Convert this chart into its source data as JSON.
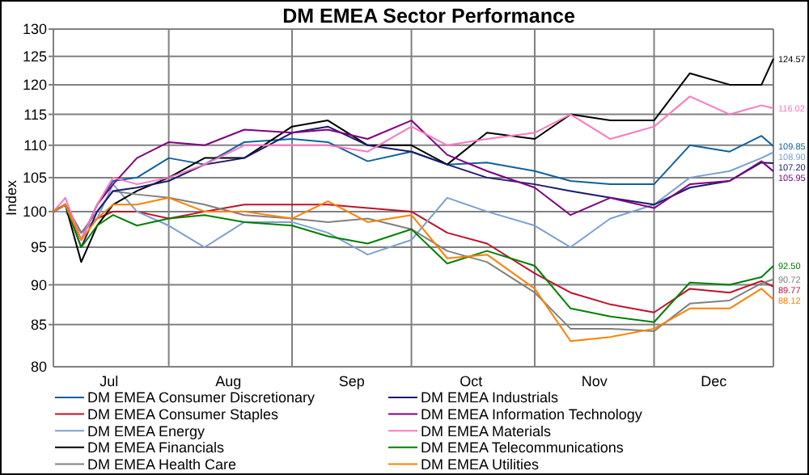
{
  "chart_data": {
    "type": "line",
    "title": "DM EMEA Sector Performance",
    "ylabel": "Index",
    "x": [
      "--07-03",
      "--07-06",
      "--07-10",
      "--07-14",
      "--07-18",
      "--07-24",
      "--08-01",
      "--08-10",
      "--08-20",
      "--09-01",
      "--09-10",
      "--09-20",
      "--10-01",
      "--10-10",
      "--10-20",
      "--11-01",
      "--11-10",
      "--11-20",
      "--12-01",
      "--12-10",
      "--12-20",
      "--12-28",
      "--12-31"
    ],
    "series": [
      {
        "name": "DM EMEA Consumer Discretionary",
        "color": "#1060a0",
        "values": [
          100,
          101,
          96,
          101,
          104.5,
          105,
          108,
          107,
          110.5,
          111,
          110.5,
          107.5,
          109,
          107,
          107.3,
          106,
          104.5,
          104,
          104,
          110,
          109,
          111.5,
          109.85
        ],
        "value_labels": [
          null,
          null,
          null,
          null,
          null,
          null,
          null,
          null,
          null,
          null,
          null,
          null,
          null,
          null,
          null,
          null,
          null,
          null,
          null,
          null,
          null,
          null,
          "109.85"
        ]
      },
      {
        "name": "DM EMEA Consumer Staples",
        "color": "#c0102a",
        "values": [
          100,
          101,
          97,
          99,
          100,
          100,
          99,
          100,
          101,
          101,
          101,
          100.5,
          100,
          97,
          95.5,
          91.5,
          89,
          87.5,
          86.5,
          89.5,
          89,
          90.5,
          89.77
        ],
        "value_labels": [
          null,
          null,
          null,
          null,
          null,
          null,
          null,
          null,
          null,
          null,
          null,
          null,
          null,
          null,
          null,
          null,
          null,
          null,
          null,
          null,
          null,
          null,
          "89.77"
        ]
      },
      {
        "name": "DM EMEA Energy",
        "color": "#7ba0d0",
        "values": [
          100,
          100,
          97,
          99,
          104,
          100,
          98,
          95,
          98.5,
          98.5,
          97,
          94,
          96,
          102,
          100,
          98,
          95,
          99,
          101,
          105,
          106,
          108,
          108.9
        ],
        "value_labels": [
          null,
          null,
          null,
          null,
          null,
          null,
          null,
          null,
          null,
          null,
          null,
          null,
          null,
          null,
          null,
          null,
          null,
          null,
          null,
          null,
          null,
          null,
          "108.90"
        ]
      },
      {
        "name": "DM EMEA Financials",
        "color": "#000000",
        "values": [
          100,
          101,
          93,
          98,
          101,
          103,
          105,
          108,
          108,
          113,
          114,
          110,
          110,
          107,
          112,
          111,
          115,
          114,
          114,
          122,
          120,
          120,
          124.57
        ],
        "value_labels": [
          null,
          null,
          null,
          null,
          null,
          null,
          null,
          null,
          null,
          null,
          null,
          null,
          null,
          null,
          null,
          null,
          null,
          null,
          null,
          null,
          null,
          null,
          "124.57"
        ]
      },
      {
        "name": "DM EMEA Health Care",
        "color": "#808080",
        "values": [
          100,
          101,
          97,
          100,
          103,
          102.5,
          102,
          101,
          99.5,
          99,
          98.5,
          99,
          97.5,
          94.5,
          93,
          89,
          84.5,
          84.5,
          84.2,
          87.6,
          88,
          90.2,
          90.72
        ],
        "value_labels": [
          null,
          null,
          null,
          null,
          null,
          null,
          null,
          null,
          null,
          null,
          null,
          null,
          null,
          null,
          null,
          null,
          null,
          null,
          null,
          null,
          null,
          null,
          "90.72"
        ]
      },
      {
        "name": "DM EMEA Industrials",
        "color": "#1a1a6e",
        "values": [
          100,
          101,
          95,
          100,
          103,
          103.5,
          104.5,
          107,
          108,
          112,
          113,
          110,
          109,
          107,
          105,
          104,
          103,
          102,
          101,
          103.5,
          104.5,
          107.3,
          107.2
        ],
        "value_labels": [
          null,
          null,
          null,
          null,
          null,
          null,
          null,
          null,
          null,
          null,
          null,
          null,
          null,
          null,
          null,
          null,
          null,
          null,
          null,
          null,
          null,
          null,
          "107.20"
        ]
      },
      {
        "name": "DM EMEA Information Technology",
        "color": "#800080",
        "values": [
          100,
          101,
          96,
          101,
          104,
          108,
          110.5,
          110,
          112.5,
          112,
          112.5,
          111,
          114,
          108.5,
          106,
          103.5,
          99.5,
          102,
          100.5,
          104,
          104.5,
          107.5,
          105.95
        ],
        "value_labels": [
          null,
          null,
          null,
          null,
          null,
          null,
          null,
          null,
          null,
          null,
          null,
          null,
          null,
          null,
          null,
          null,
          null,
          null,
          null,
          null,
          null,
          null,
          "105.95"
        ]
      },
      {
        "name": "DM EMEA Materials",
        "color": "#ff77c0",
        "values": [
          100,
          102,
          96,
          101,
          105,
          104,
          105,
          107,
          110,
          110,
          110,
          109,
          113,
          110,
          111,
          112,
          115,
          111,
          113,
          118,
          115,
          116.5,
          116.02
        ],
        "value_labels": [
          null,
          null,
          null,
          null,
          null,
          null,
          null,
          null,
          null,
          null,
          null,
          null,
          null,
          null,
          null,
          null,
          null,
          null,
          null,
          null,
          null,
          null,
          "116.02"
        ]
      },
      {
        "name": "DM EMEA Telecommunications",
        "color": "#008000",
        "values": [
          100,
          101,
          95,
          98,
          99.5,
          98,
          99,
          99.5,
          98.5,
          98,
          96.5,
          95.5,
          97.5,
          92.8,
          94.5,
          92.5,
          87,
          86,
          85.3,
          90.3,
          90,
          91,
          92.5
        ],
        "value_labels": [
          null,
          null,
          null,
          null,
          null,
          null,
          null,
          null,
          null,
          null,
          null,
          null,
          null,
          null,
          null,
          null,
          null,
          null,
          null,
          null,
          null,
          null,
          "92.50"
        ]
      },
      {
        "name": "DM EMEA Utilities",
        "color": "#ff8000",
        "values": [
          100,
          101,
          96,
          99,
          101,
          101,
          102,
          100,
          100,
          99,
          101.5,
          98.5,
          99.5,
          93.5,
          94,
          89.5,
          83,
          83.5,
          84.5,
          87,
          87,
          89.5,
          88.12
        ],
        "value_labels": [
          null,
          null,
          null,
          null,
          null,
          null,
          null,
          null,
          null,
          null,
          null,
          null,
          null,
          null,
          null,
          null,
          null,
          null,
          null,
          null,
          null,
          null,
          "88.12"
        ]
      }
    ],
    "xlim": [
      "--07-03",
      "--12-31"
    ],
    "xticks": [
      {
        "value": "--07-17",
        "label": "Jul"
      },
      {
        "value": "--08-01",
        "label": null
      },
      {
        "value": "--08-16",
        "label": "Aug"
      },
      {
        "value": "--09-01",
        "label": null
      },
      {
        "value": "--09-16",
        "label": "Sep"
      },
      {
        "value": "--10-01",
        "label": null
      },
      {
        "value": "--10-16",
        "label": "Oct"
      },
      {
        "value": "--11-01",
        "label": null
      },
      {
        "value": "--11-16",
        "label": "Nov"
      },
      {
        "value": "--12-01",
        "label": null
      },
      {
        "value": "--12-16",
        "label": "Dec"
      }
    ],
    "ylim": [
      80,
      130
    ],
    "yticks": [
      80,
      85,
      90,
      95,
      100,
      105,
      110,
      115,
      120,
      125,
      130
    ],
    "log": "y",
    "grid": true,
    "legend": "bottom",
    "marker": "none",
    "line_style": "solid"
  }
}
